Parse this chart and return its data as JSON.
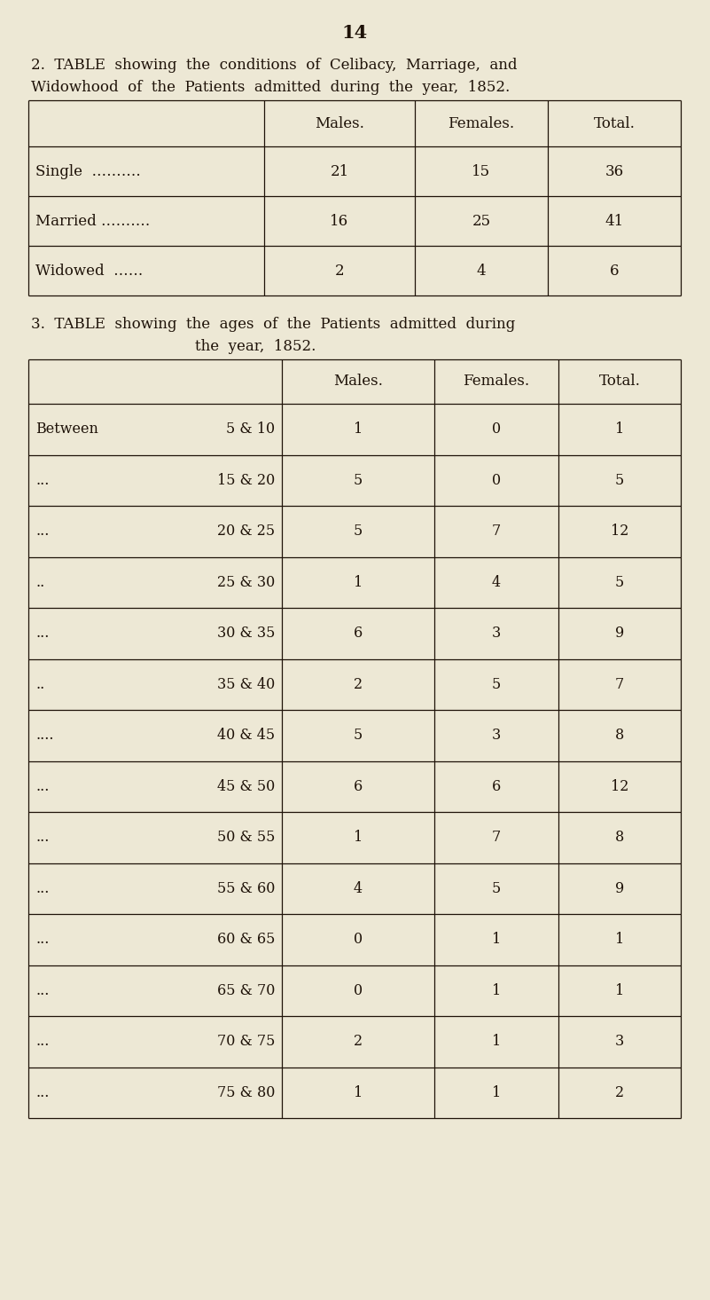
{
  "page_number": "14",
  "bg_color": "#ede8d5",
  "text_color": "#1e1208",
  "table1_title_line1": "2.  TABLE  showing  the  conditions  of  Celibacy,  Marriage,  and",
  "table1_title_line2": "Widowhood  of  the  Patients  admitted  during  the  year,  1852.",
  "table1_headers": [
    "Males.",
    "Females.",
    "Total."
  ],
  "table1_row_labels": [
    "Single  ……….",
    "Married ……….",
    "Widowed  ……"
  ],
  "table1_males": [
    21,
    16,
    2
  ],
  "table1_females": [
    15,
    25,
    4
  ],
  "table1_totals": [
    36,
    41,
    6
  ],
  "table2_title_line1": "3.  TABLE  showing  the  ages  of  the  Patients  admitted  during",
  "table2_title_line2": "the  year,  1852.",
  "table2_headers": [
    "Males.",
    "Females.",
    "Total."
  ],
  "table2_prefix": [
    "Between",
    "...",
    "...",
    "..",
    "...",
    "..",
    "....",
    "...",
    "...",
    "...",
    "...",
    "...",
    "...",
    "..."
  ],
  "table2_age": [
    "5 & 10",
    "15 & 20",
    "20 & 25",
    "25 & 30",
    "30 & 35",
    "35 & 40",
    "40 & 45",
    "45 & 50",
    "50 & 55",
    "55 & 60",
    "60 & 65",
    "65 & 70",
    "70 & 75",
    "75 & 80"
  ],
  "table2_males": [
    1,
    5,
    5,
    1,
    6,
    2,
    5,
    6,
    1,
    4,
    0,
    0,
    2,
    1
  ],
  "table2_females": [
    0,
    0,
    7,
    4,
    3,
    5,
    3,
    6,
    7,
    5,
    1,
    1,
    1,
    1
  ],
  "table2_totals": [
    1,
    5,
    12,
    5,
    9,
    7,
    8,
    12,
    8,
    9,
    1,
    1,
    3,
    2
  ]
}
